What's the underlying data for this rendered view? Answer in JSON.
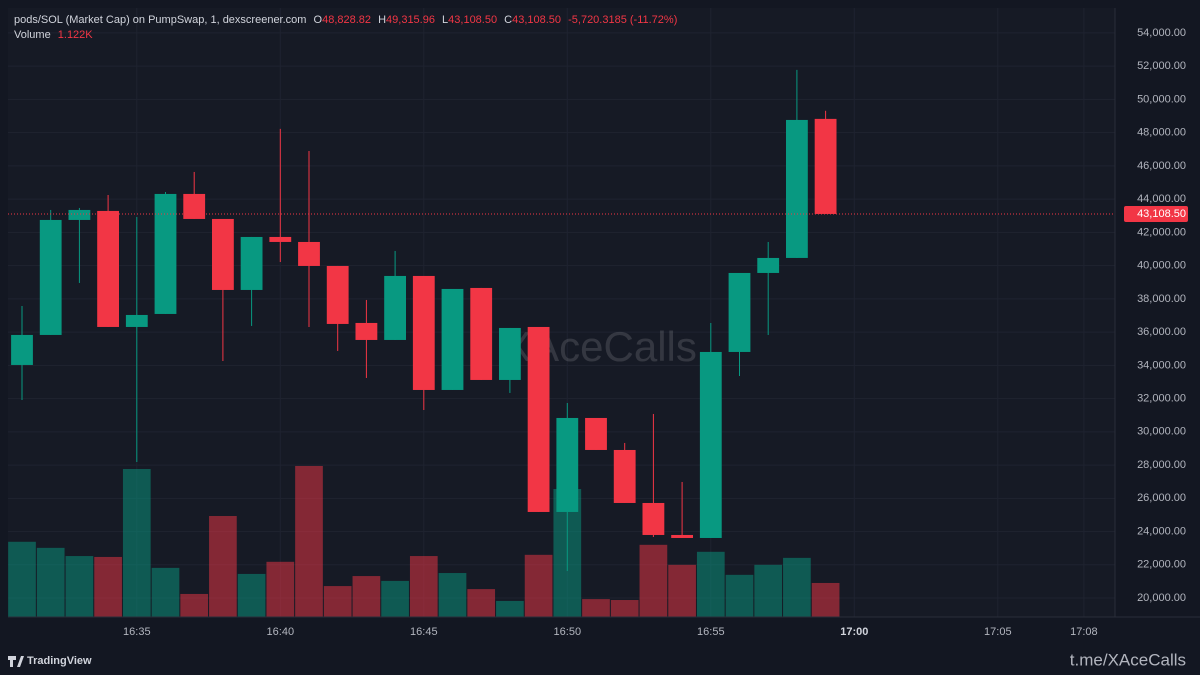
{
  "chart_data": {
    "type": "candlestick",
    "title": "pods/SOL (Market Cap) on PumpSwap, 1, dexscreener.com",
    "legend": {
      "open_key": "O",
      "open": "48,828.82",
      "high_key": "H",
      "high": "49,315.96",
      "low_key": "L",
      "low": "43,108.50",
      "close_key": "C",
      "close": "43,108.50",
      "change": "-5,720.3185 (-11.72%)"
    },
    "volume_name": "Volume",
    "volume_last_label": "1.122K",
    "x": [
      "16:31",
      "16:32",
      "16:33",
      "16:34",
      "16:35",
      "16:36",
      "16:37",
      "16:38",
      "16:39",
      "16:40",
      "16:41",
      "16:42",
      "16:43",
      "16:44",
      "16:45",
      "16:46",
      "16:47",
      "16:48",
      "16:49",
      "16:50",
      "16:51",
      "16:52",
      "16:53",
      "16:54",
      "16:55",
      "16:56",
      "16:57",
      "16:58",
      "16:59"
    ],
    "open": [
      34024,
      35829,
      42748,
      43290,
      36310,
      37092,
      44313,
      42808,
      38536,
      41725,
      41424,
      39980,
      36551,
      35528,
      39379,
      32519,
      38657,
      33121,
      36310,
      25179,
      30835,
      28909,
      25720,
      23795,
      23614,
      34806,
      39559,
      40462,
      48828.82
    ],
    "high": [
      37573,
      43350,
      43470,
      44253,
      42929,
      44433,
      45636,
      42808,
      41725,
      48224,
      46900,
      39980,
      37935,
      40883,
      39379,
      38597,
      38657,
      36250,
      36310,
      31737,
      30835,
      29331,
      31075,
      26984,
      36551,
      39559,
      41424,
      51774,
      49315.96
    ],
    "low": [
      31918,
      35829,
      38958,
      36310,
      28187,
      37092,
      42808,
      34264,
      36370,
      40221,
      36310,
      34866,
      33241,
      35528,
      31316,
      32519,
      33121,
      32339,
      25179,
      21628,
      28909,
      25720,
      23674,
      23614,
      23614,
      33362,
      35829,
      40462,
      43108.5
    ],
    "close": [
      35829,
      42748,
      43350,
      36310,
      37032,
      44313,
      42808,
      38536,
      41725,
      41424,
      39980,
      36491,
      35528,
      39379,
      32519,
      38597,
      33121,
      36250,
      25179,
      30835,
      28909,
      25720,
      23795,
      23614,
      34806,
      39559,
      40462,
      48765,
      43108.5
    ],
    "volume": [
      2480,
      2280,
      2010,
      1980,
      4880,
      1620,
      760,
      3330,
      1420,
      1820,
      4980,
      1020,
      1350,
      1190,
      2010,
      1450,
      920,
      530,
      2050,
      4220,
      590,
      560,
      2380,
      1720,
      2150,
      1390,
      1720,
      1950,
      1122
    ],
    "up_color": "#089981",
    "down_color": "#f23645",
    "ylim": [
      18860,
      55500
    ],
    "yticks": [
      {
        "value": 20000,
        "label": "20,000.00"
      },
      {
        "value": 22000,
        "label": "22,000.00"
      },
      {
        "value": 24000,
        "label": "24,000.00"
      },
      {
        "value": 26000,
        "label": "26,000.00"
      },
      {
        "value": 28000,
        "label": "28,000.00"
      },
      {
        "value": 30000,
        "label": "30,000.00"
      },
      {
        "value": 32000,
        "label": "32,000.00"
      },
      {
        "value": 34000,
        "label": "34,000.00"
      },
      {
        "value": 36000,
        "label": "36,000.00"
      },
      {
        "value": 38000,
        "label": "38,000.00"
      },
      {
        "value": 40000,
        "label": "40,000.00"
      },
      {
        "value": 42000,
        "label": "42,000.00"
      },
      {
        "value": 44000,
        "label": "44,000.00"
      },
      {
        "value": 46000,
        "label": "46,000.00"
      },
      {
        "value": 48000,
        "label": "48,000.00"
      },
      {
        "value": 50000,
        "label": "50,000.00"
      },
      {
        "value": 52000,
        "label": "52,000.00"
      },
      {
        "value": 54000,
        "label": "54,000.00"
      }
    ],
    "xlim": [
      "16:30",
      "17:09"
    ],
    "xticks": [
      "16:35",
      "16:40",
      "16:45",
      "16:50",
      "16:55",
      "17:00",
      "17:05",
      "17:08"
    ],
    "last_price": {
      "value": 43108.5,
      "label": "43,108.50"
    },
    "grid": true,
    "watermark": "XAceCalls",
    "footer_brand": "TradingView",
    "footer_link": "t.me/XAceCalls"
  }
}
